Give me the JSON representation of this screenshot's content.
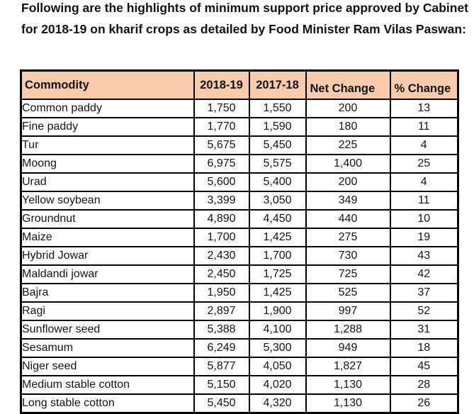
{
  "intro": {
    "text": "Following are the highlights of minimum support price approved by Cabinet for 2018-19 on kharif crops as detailed by Food Minister Ram Vilas Paswan:"
  },
  "colors": {
    "header_bg": "#F8CBAD",
    "positive_green": "#3BAE5C",
    "grid_border": "#000000",
    "text": "#141414"
  },
  "table": {
    "columns": [
      "Commodity",
      "2018-19",
      "2017-18",
      "Net Change",
      "% Change"
    ],
    "rows": [
      [
        "Common paddy",
        "1,750",
        "1,550",
        "200",
        "13"
      ],
      [
        "Fine paddy",
        "1,770",
        "1,590",
        "180",
        "11"
      ],
      [
        "Tur",
        "5,675",
        "5,450",
        "225",
        "4"
      ],
      [
        "Moong",
        "6,975",
        "5,575",
        "1,400",
        "25"
      ],
      [
        "Urad",
        "5,600",
        "5,400",
        "200",
        "4"
      ],
      [
        "Yellow soybean",
        "3,399",
        "3,050",
        "349",
        "11"
      ],
      [
        "Groundnut",
        "4,890",
        "4,450",
        "440",
        "10"
      ],
      [
        "Maize",
        "1,700",
        "1,425",
        "275",
        "19"
      ],
      [
        "Hybrid Jowar",
        "2,430",
        "1,700",
        "730",
        "43"
      ],
      [
        "Maldandi  jowar",
        "2,450",
        "1,725",
        "725",
        "42"
      ],
      [
        "Bajra",
        "1,950",
        "1,425",
        "525",
        "37"
      ],
      [
        "Ragi",
        "2,897",
        "1,900",
        "997",
        "52"
      ],
      [
        "Sunflower seed",
        "5,388",
        "4,100",
        "1,288",
        "31"
      ],
      [
        "Sesamum",
        "6,249",
        "5,300",
        "949",
        "18"
      ],
      [
        "Niger seed",
        "5,877",
        "4,050",
        "1,827",
        "45"
      ],
      [
        "Medium stable cotton",
        "5,150",
        "4,020",
        "1,130",
        "28"
      ],
      [
        "Long stable cotton",
        "5,450",
        "4,320",
        "1,130",
        "26"
      ]
    ]
  }
}
